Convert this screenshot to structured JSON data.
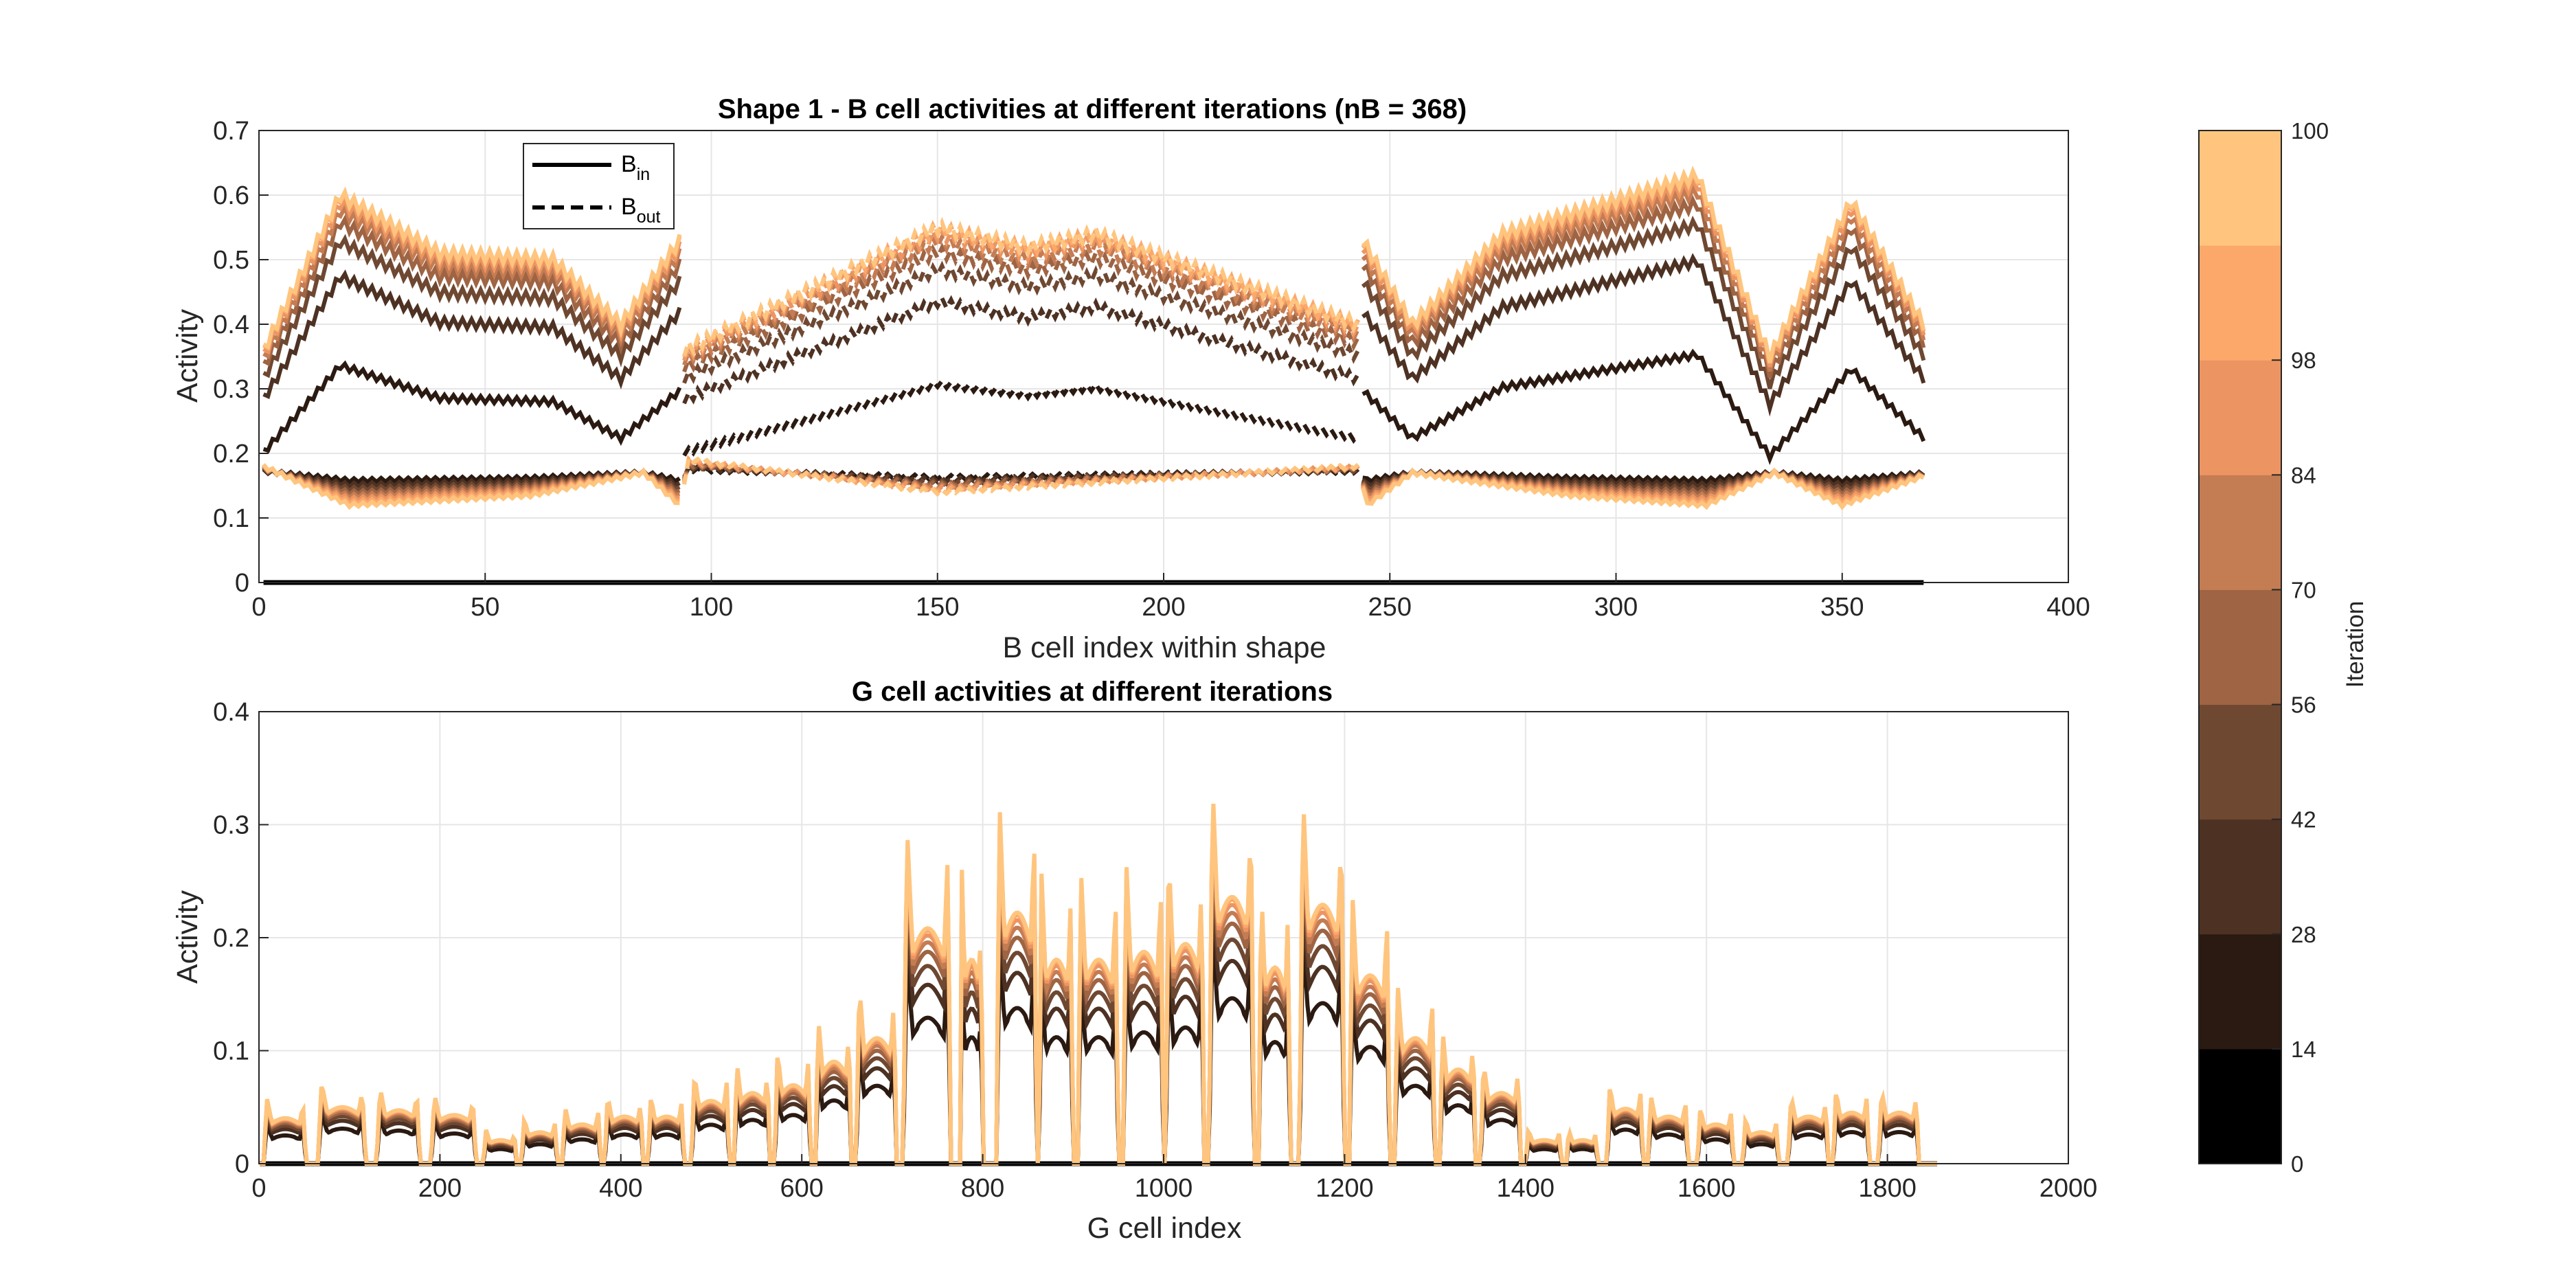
{
  "chart_data": [
    {
      "type": "line",
      "title": "Shape 1 - B cell activities at different iterations (nB = 368)",
      "xlabel": "B cell index within shape",
      "ylabel": "Activity",
      "xlim": [
        0,
        400
      ],
      "ylim": [
        0,
        0.7
      ],
      "xticks": [
        "0",
        "50",
        "100",
        "150",
        "200",
        "250",
        "300",
        "350",
        "400"
      ],
      "yticks": [
        "0",
        "0.1",
        "0.2",
        "0.3",
        "0.4",
        "0.5",
        "0.6",
        "0.7"
      ],
      "grid": true,
      "legend": {
        "placement": "top-left",
        "entries": [
          {
            "base": "B",
            "sub": "in",
            "style": "solid"
          },
          {
            "base": "B",
            "sub": "out",
            "style": "dashed"
          }
        ]
      },
      "segments": [
        {
          "name": "B_in",
          "style": "solid",
          "x_range": [
            1,
            93
          ]
        },
        {
          "name": "B_out",
          "style": "dashed",
          "x_range": [
            94,
            243
          ]
        },
        {
          "name": "B_in",
          "style": "solid",
          "x_range": [
            244,
            368
          ]
        }
      ],
      "upper_envelope": {
        "description": "activity of active B cells at final iteration 100",
        "points": [
          [
            1,
            0.36
          ],
          [
            18,
            0.6
          ],
          [
            40,
            0.51
          ],
          [
            65,
            0.5
          ],
          [
            80,
            0.4
          ],
          [
            93,
            0.53
          ],
          [
            94,
            0.36
          ],
          [
            150,
            0.55
          ],
          [
            170,
            0.52
          ],
          [
            185,
            0.54
          ],
          [
            243,
            0.4
          ],
          [
            244,
            0.53
          ],
          [
            255,
            0.4
          ],
          [
            275,
            0.54
          ],
          [
            318,
            0.63
          ],
          [
            334,
            0.35
          ],
          [
            352,
            0.59
          ],
          [
            368,
            0.4
          ]
        ]
      },
      "lower_envelope": {
        "description": "activity of inactive B cells at final iteration 100",
        "points": [
          [
            1,
            0.18
          ],
          [
            20,
            0.12
          ],
          [
            60,
            0.135
          ],
          [
            85,
            0.17
          ],
          [
            93,
            0.12
          ],
          [
            95,
            0.19
          ],
          [
            150,
            0.14
          ],
          [
            243,
            0.18
          ],
          [
            245,
            0.12
          ],
          [
            255,
            0.17
          ],
          [
            290,
            0.135
          ],
          [
            320,
            0.12
          ],
          [
            335,
            0.17
          ],
          [
            350,
            0.12
          ],
          [
            368,
            0.165
          ]
        ]
      },
      "iterations": [
        0,
        14,
        28,
        42,
        56,
        70,
        84,
        98,
        100
      ],
      "iteration_scale_upper": [
        0,
        0.56,
        0.79,
        0.88,
        0.93,
        0.96,
        0.98,
        0.995,
        1.0
      ]
    },
    {
      "type": "line",
      "title": "G cell activities at different iterations",
      "xlabel": "G cell index",
      "ylabel": "Activity",
      "xlim": [
        0,
        2000
      ],
      "ylim": [
        0,
        0.4
      ],
      "xticks": [
        "0",
        "200",
        "400",
        "600",
        "800",
        "1000",
        "1200",
        "1400",
        "1600",
        "1800",
        "2000"
      ],
      "yticks": [
        "0",
        "0.1",
        "0.2",
        "0.3",
        "0.4"
      ],
      "grid": true,
      "n_cells": 1855,
      "groups": [
        {
          "start": 5,
          "end": 52,
          "peak": 0.058
        },
        {
          "start": 65,
          "end": 118,
          "peak": 0.072
        },
        {
          "start": 130,
          "end": 178,
          "peak": 0.068
        },
        {
          "start": 190,
          "end": 240,
          "peak": 0.062
        },
        {
          "start": 248,
          "end": 285,
          "peak": 0.03
        },
        {
          "start": 290,
          "end": 330,
          "peak": 0.04
        },
        {
          "start": 335,
          "end": 378,
          "peak": 0.05
        },
        {
          "start": 382,
          "end": 425,
          "peak": 0.06
        },
        {
          "start": 430,
          "end": 470,
          "peak": 0.06
        },
        {
          "start": 478,
          "end": 520,
          "peak": 0.08
        },
        {
          "start": 525,
          "end": 565,
          "peak": 0.09
        },
        {
          "start": 570,
          "end": 610,
          "peak": 0.1
        },
        {
          "start": 615,
          "end": 655,
          "peak": 0.13
        },
        {
          "start": 660,
          "end": 705,
          "peak": 0.16
        },
        {
          "start": 712,
          "end": 765,
          "peak": 0.3
        },
        {
          "start": 775,
          "end": 800,
          "peak": 0.26
        },
        {
          "start": 815,
          "end": 860,
          "peak": 0.32
        },
        {
          "start": 862,
          "end": 900,
          "peak": 0.26
        },
        {
          "start": 905,
          "end": 950,
          "peak": 0.26
        },
        {
          "start": 955,
          "end": 1000,
          "peak": 0.27
        },
        {
          "start": 1002,
          "end": 1045,
          "peak": 0.28
        },
        {
          "start": 1050,
          "end": 1100,
          "peak": 0.34
        },
        {
          "start": 1105,
          "end": 1140,
          "peak": 0.25
        },
        {
          "start": 1150,
          "end": 1200,
          "peak": 0.33
        },
        {
          "start": 1205,
          "end": 1250,
          "peak": 0.24
        },
        {
          "start": 1255,
          "end": 1300,
          "peak": 0.16
        },
        {
          "start": 1305,
          "end": 1345,
          "peak": 0.12
        },
        {
          "start": 1350,
          "end": 1395,
          "peak": 0.09
        },
        {
          "start": 1400,
          "end": 1440,
          "peak": 0.03
        },
        {
          "start": 1445,
          "end": 1480,
          "peak": 0.03
        },
        {
          "start": 1490,
          "end": 1530,
          "peak": 0.07
        },
        {
          "start": 1535,
          "end": 1580,
          "peak": 0.06
        },
        {
          "start": 1590,
          "end": 1630,
          "peak": 0.05
        },
        {
          "start": 1640,
          "end": 1680,
          "peak": 0.04
        },
        {
          "start": 1690,
          "end": 1735,
          "peak": 0.06
        },
        {
          "start": 1740,
          "end": 1780,
          "peak": 0.065
        },
        {
          "start": 1790,
          "end": 1835,
          "peak": 0.065
        }
      ],
      "iterations": [
        0,
        14,
        28,
        42,
        56,
        70,
        84,
        98,
        100
      ],
      "iteration_scale_peak": [
        0,
        0.62,
        0.76,
        0.84,
        0.9,
        0.94,
        0.97,
        0.99,
        1.0
      ],
      "iteration_scale_plateau": [
        0,
        1.0,
        1.25,
        1.38,
        1.48,
        1.55,
        1.6,
        1.62,
        1.64
      ]
    }
  ],
  "colorbar": {
    "label": "Iteration",
    "ticks": [
      "0",
      "14",
      "28",
      "42",
      "56",
      "70",
      "84",
      "98",
      "100"
    ],
    "colors": [
      "#000000",
      "#2b1a11",
      "#4d3122",
      "#6f4832",
      "#9e6443",
      "#c47c53",
      "#ec9562",
      "#fca86b",
      "#ffc57e"
    ]
  }
}
